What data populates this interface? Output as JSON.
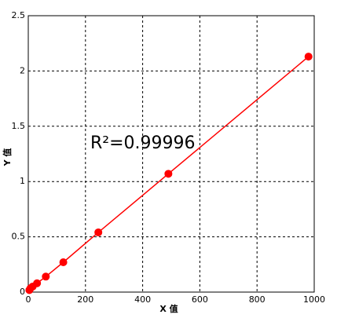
{
  "chart_data": {
    "type": "scatter",
    "x_label": "X 值",
    "y_label": "Y 值",
    "annotation": "R²=0.99996",
    "series": [
      {
        "color": "#ff0000",
        "x": [
          3.8,
          7.7,
          15.3,
          30.6,
          61.3,
          122.5,
          245,
          490,
          980
        ],
        "values": [
          0.018,
          0.035,
          0.05,
          0.08,
          0.14,
          0.27,
          0.54,
          1.07,
          2.13
        ]
      }
    ],
    "xlim": [
      0,
      1000
    ],
    "xticks": [
      0,
      200,
      400,
      600,
      800,
      1000
    ],
    "ylim": [
      0,
      2.5
    ],
    "yticks": [
      0,
      0.5,
      1,
      1.5,
      2,
      2.5
    ],
    "grid": true
  }
}
